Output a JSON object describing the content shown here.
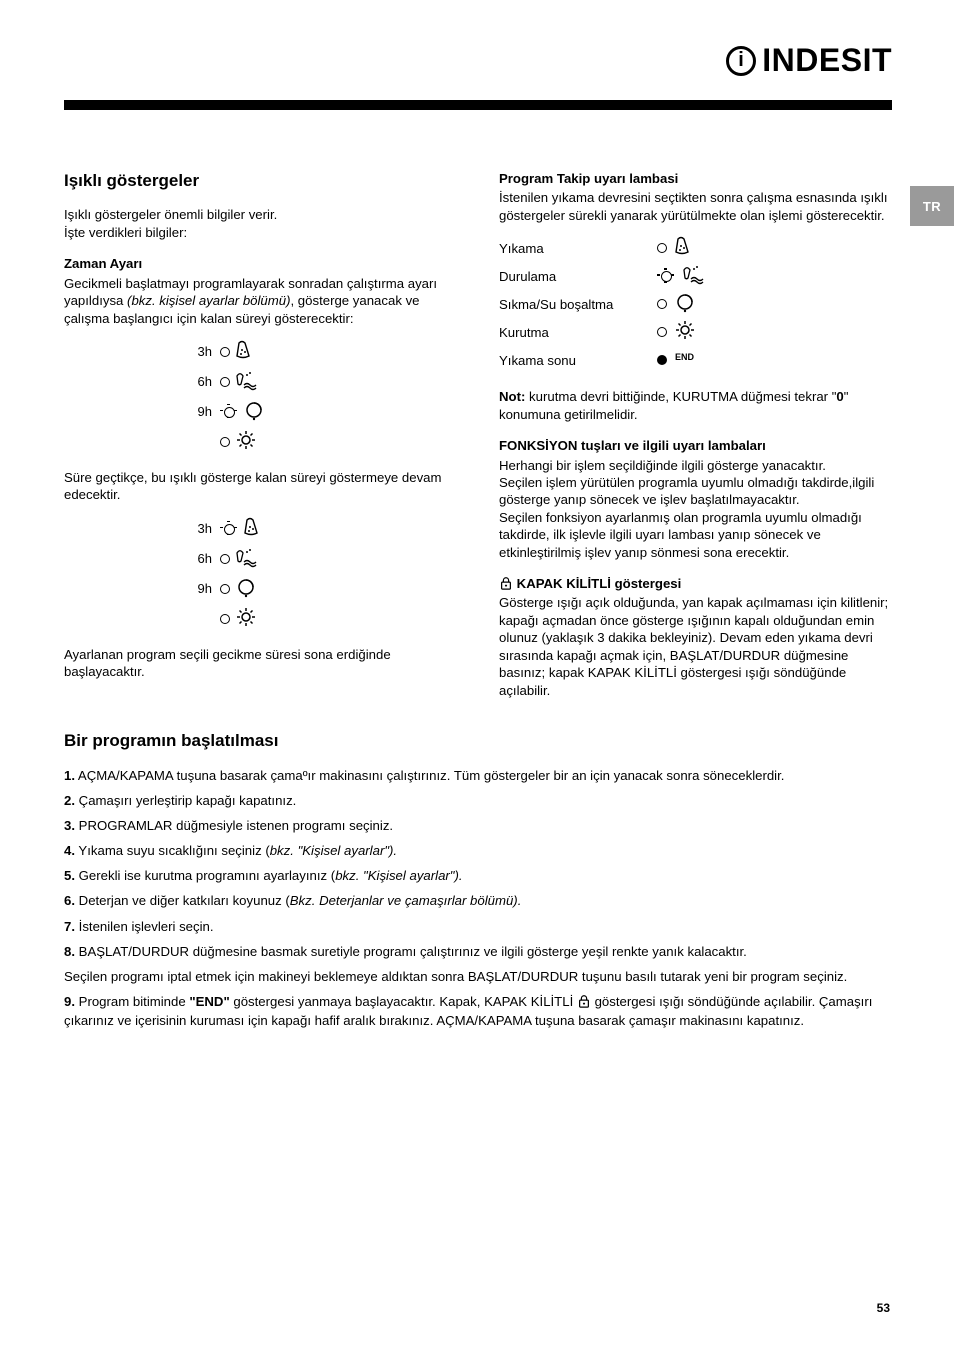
{
  "brand": "INDESIT",
  "lang_tab": "TR",
  "page_number": "53",
  "left": {
    "h_indicators": "Işıklı göstergeler",
    "p1a": "Işıklı göstergeler önemli bilgiler verir.",
    "p1b": "İşte verdikleri bilgiler:",
    "h_time": "Zaman Ayarı",
    "p2a": "Gecikmeli başlatmayı programlayarak sonradan çalıştırma ayarı yapıldıysa ",
    "p2b_it": "(bkz. kişisel ayarlar bölümü)",
    "p2c": ", gösterge yanacak ve çalışma başlangıcı için kalan süreyi gösterecektir:",
    "delay1": [
      {
        "label": "3h",
        "led": "off",
        "icon": "wash"
      },
      {
        "label": "6h",
        "led": "off",
        "icon": "rinse"
      },
      {
        "label": "9h",
        "led": "glow",
        "icon": "spin"
      },
      {
        "label": "",
        "led": "off",
        "icon": "dry"
      }
    ],
    "p3": "Süre geçtikçe, bu ışıklı gösterge kalan süreyi göstermeye devam edecektir.",
    "delay2": [
      {
        "label": "3h",
        "led": "glow",
        "icon": "wash"
      },
      {
        "label": "6h",
        "led": "off",
        "icon": "rinse"
      },
      {
        "label": "9h",
        "led": "off",
        "icon": "spin"
      },
      {
        "label": "",
        "led": "off",
        "icon": "dry"
      }
    ],
    "p4": "Ayarlanan program seçili gecikme süresi sona erdiğinde başlayacaktır."
  },
  "right": {
    "h_prog": "Program Takip uyarı lambasi",
    "p1": "İstenilen yıkama devresini seçtikten sonra çalışma esnasında ışıklı göstergeler  sürekli yanarak yürütülmekte olan işlemi gösterecektir.",
    "inds": [
      {
        "label": "Yıkama",
        "led": "off",
        "icon": "wash"
      },
      {
        "label": "Durulama",
        "led": "glow",
        "icon": "rinse"
      },
      {
        "label": "Sıkma/Su boşaltma",
        "led": "off",
        "icon": "spin"
      },
      {
        "label": "Kurutma",
        "led": "off",
        "icon": "dry"
      },
      {
        "label": "Yıkama sonu",
        "led": "on",
        "icon": "end"
      }
    ],
    "note_b": "Not:",
    "note": " kurutma devri bittiğinde, KURUTMA düğmesi tekrar \"",
    "note_zero": "0",
    "note_end": "\" konumuna getirilmelidir.",
    "h_func": "FONKSİYON tuşları ve ilgili uyarı lambaları",
    "p_func1": "Herhangi bir işlem seçildiğinde ilgili gösterge yanacaktır.",
    "p_func2": "Seçilen işlem yürütülen programla uyumlu olmadığı takdirde,ilgili gösterge yanıp sönecek ve işlev başlatılmayacaktır.",
    "p_func3": "Seçilen fonksiyon ayarlanmış olan programla uyumlu olmadığı takdirde, ilk işlevle ilgili uyarı lambası yanıp sönecek ve etkinleştirilmiş işlev yanıp sönmesi sona erecektir.",
    "h_lock": "KAPAK KİLİTLİ göstergesi",
    "p_lock": "Gösterge ışığı açık olduğunda, yan kapak açılmaması için kilitlenir; kapağı açmadan önce gösterge ışığının kapalı olduğundan emin olunuz (yaklaşık 3 dakika bekleyiniz). Devam eden yıkama devri sırasında kapağı açmak için, BAŞLAT/DURDUR düğmesine basınız; kapak KAPAK KİLİTLİ göstergesi ışığı söndüğünde açılabilir."
  },
  "start": {
    "h": "Bir programın başlatılması",
    "s1b": "1.",
    "s1": " AÇMA/KAPAMA tuşuna basarak çamaºır makinasını çalıştırınız. Tüm göstergeler bir an için yanacak sonra söneceklerdir.",
    "s2b": "2.",
    "s2": " Çamaşırı yerleştirip kapağı kapatınız.",
    "s3b": "3.",
    "s3": " PROGRAMLAR düğmesiyle istenen programı seçiniz.",
    "s4b": "4.",
    "s4a": " Yıkama suyu sıcaklığını seçiniz (",
    "s4it": "bkz. \"Kişisel ayarlar\").",
    "s5b": "5.",
    "s5a": " Gerekli ise kurutma programını ayarlayınız (",
    "s5it": "bkz. \"Kişisel ayarlar\").",
    "s6b": "6.",
    "s6a": " Deterjan ve diğer katkıları koyunuz (",
    "s6it": "Bkz. Deterjanlar ve çamaşırlar bölümü).",
    "s7b": "7.",
    "s7": " İstenilen işlevleri seçin.",
    "s8b": "8.",
    "s8a": " BAŞLAT/DURDUR düğmesine basmak suretiyle programı çalıştırınız ve ilgili gösterge yeşil renkte yanık kalacaktır.",
    "s8p": "Seçilen programı iptal etmek için makineyi beklemeye aldıktan sonra BAŞLAT/DURDUR tuşunu basılı tutarak yeni bir program seçiniz.",
    "s9b": "9.",
    "s9a": " Program bitiminde ",
    "s9end": "\"END\"",
    "s9c": " göstergesi yanmaya başlayacaktır. Kapak, KAPAK KİLİTLİ ",
    "s9d": " göstergesi ışığı söndüğünde açılabilir. Çamaşırı çıkarınız ve içerisinin kuruması için kapağı hafif aralık bırakınız. AÇMA/KAPAMA tuşuna basarak çamaşır makinasını kapatınız."
  },
  "colors": {
    "text": "#000000",
    "bg": "#ffffff",
    "tab": "#9a9a9a"
  }
}
